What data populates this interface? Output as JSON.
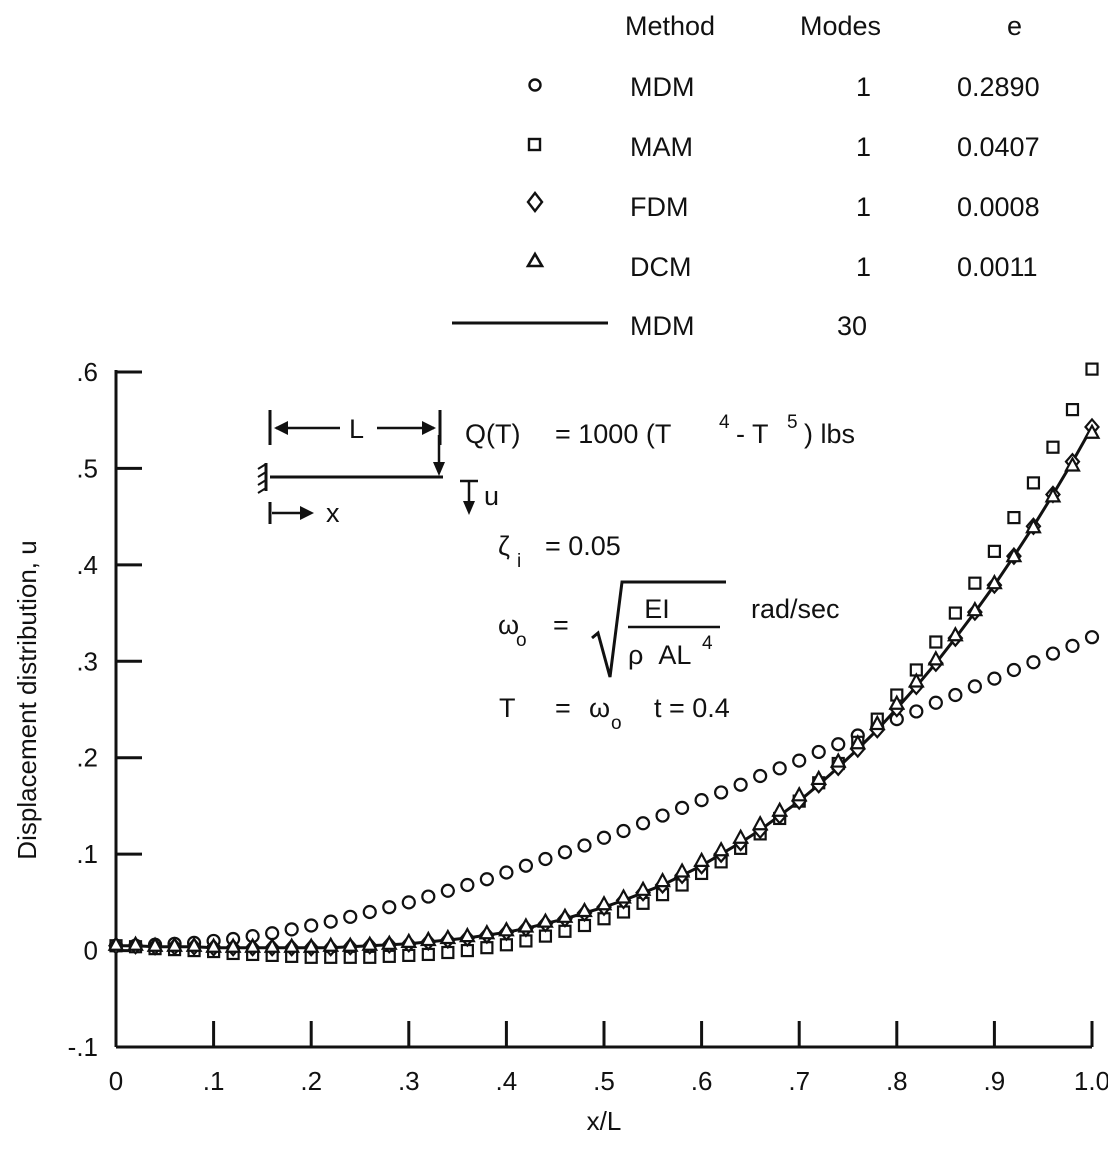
{
  "chart_data": {
    "type": "scatter",
    "xlabel": "x/L",
    "ylabel": "Displacement distribution, u",
    "xlim": [
      0,
      1.0
    ],
    "ylim": [
      -0.1,
      0.6
    ],
    "x_ticks": [
      "0",
      ".1",
      ".2",
      ".3",
      ".4",
      ".5",
      ".6",
      ".7",
      ".8",
      ".9",
      "1.0"
    ],
    "y_ticks": [
      "-.1",
      "0",
      ".1",
      ".2",
      ".3",
      ".4",
      ".5",
      ".6"
    ],
    "legend": {
      "placement": "top-right",
      "headers": {
        "method": "Method",
        "modes": "Modes",
        "e": "e"
      },
      "rows": [
        {
          "marker": "circle",
          "method": "MDM",
          "modes": "1",
          "e": "0.2890"
        },
        {
          "marker": "square",
          "method": "MAM",
          "modes": "1",
          "e": "0.0407"
        },
        {
          "marker": "diamond",
          "method": "FDM",
          "modes": "1",
          "e": "0.0008"
        },
        {
          "marker": "triangle",
          "method": "DCM",
          "modes": "1",
          "e": "0.0011"
        },
        {
          "marker": "line",
          "method": "MDM",
          "modes": "30",
          "e": ""
        }
      ]
    },
    "series": [
      {
        "name": "MDM",
        "modes": "1",
        "marker": "circle",
        "x": [
          0.0,
          0.02,
          0.04,
          0.06,
          0.08,
          0.1,
          0.12,
          0.14,
          0.16,
          0.18,
          0.2,
          0.22,
          0.24,
          0.26,
          0.28,
          0.3,
          0.32,
          0.34,
          0.36,
          0.38,
          0.4,
          0.42,
          0.44,
          0.46,
          0.48,
          0.5,
          0.52,
          0.54,
          0.56,
          0.58,
          0.6,
          0.62,
          0.64,
          0.66,
          0.68,
          0.7,
          0.72,
          0.74,
          0.76,
          0.78,
          0.8,
          0.82,
          0.84,
          0.86,
          0.88,
          0.9,
          0.92,
          0.94,
          0.96,
          0.98,
          1.0
        ],
        "y": [
          0.005,
          0.005,
          0.006,
          0.007,
          0.008,
          0.01,
          0.012,
          0.015,
          0.018,
          0.022,
          0.026,
          0.03,
          0.035,
          0.04,
          0.045,
          0.05,
          0.056,
          0.062,
          0.068,
          0.074,
          0.081,
          0.088,
          0.095,
          0.102,
          0.109,
          0.117,
          0.124,
          0.132,
          0.14,
          0.148,
          0.156,
          0.164,
          0.172,
          0.181,
          0.189,
          0.197,
          0.206,
          0.214,
          0.223,
          0.231,
          0.24,
          0.248,
          0.257,
          0.265,
          0.274,
          0.282,
          0.291,
          0.299,
          0.308,
          0.316,
          0.325
        ]
      },
      {
        "name": "MAM",
        "modes": "1",
        "marker": "square",
        "x": [
          0.0,
          0.02,
          0.04,
          0.06,
          0.08,
          0.1,
          0.12,
          0.14,
          0.16,
          0.18,
          0.2,
          0.22,
          0.24,
          0.26,
          0.28,
          0.3,
          0.32,
          0.34,
          0.36,
          0.38,
          0.4,
          0.42,
          0.44,
          0.46,
          0.48,
          0.5,
          0.52,
          0.54,
          0.56,
          0.58,
          0.6,
          0.62,
          0.64,
          0.66,
          0.68,
          0.7,
          0.72,
          0.74,
          0.76,
          0.78,
          0.8,
          0.82,
          0.84,
          0.86,
          0.88,
          0.9,
          0.92,
          0.94,
          0.96,
          0.98,
          1.0
        ],
        "y": [
          0.005,
          0.004,
          0.002,
          0.001,
          0.0,
          -0.001,
          -0.003,
          -0.004,
          -0.005,
          -0.006,
          -0.007,
          -0.007,
          -0.007,
          -0.007,
          -0.006,
          -0.005,
          -0.004,
          -0.002,
          0.0,
          0.003,
          0.006,
          0.01,
          0.015,
          0.02,
          0.026,
          0.033,
          0.04,
          0.049,
          0.058,
          0.068,
          0.08,
          0.092,
          0.106,
          0.121,
          0.137,
          0.155,
          0.174,
          0.194,
          0.216,
          0.24,
          0.265,
          0.291,
          0.32,
          0.35,
          0.381,
          0.414,
          0.449,
          0.485,
          0.522,
          0.561,
          0.603
        ]
      },
      {
        "name": "FDM",
        "modes": "1",
        "marker": "diamond",
        "x": [
          0.0,
          0.02,
          0.04,
          0.06,
          0.08,
          0.1,
          0.12,
          0.14,
          0.16,
          0.18,
          0.2,
          0.22,
          0.24,
          0.26,
          0.28,
          0.3,
          0.32,
          0.34,
          0.36,
          0.38,
          0.4,
          0.42,
          0.44,
          0.46,
          0.48,
          0.5,
          0.52,
          0.54,
          0.56,
          0.58,
          0.6,
          0.62,
          0.64,
          0.66,
          0.68,
          0.7,
          0.72,
          0.74,
          0.76,
          0.78,
          0.8,
          0.82,
          0.84,
          0.86,
          0.88,
          0.9,
          0.92,
          0.94,
          0.96,
          0.98,
          1.0
        ],
        "y": [
          0.005,
          0.005,
          0.004,
          0.004,
          0.004,
          0.003,
          0.003,
          0.003,
          0.003,
          0.003,
          0.003,
          0.003,
          0.004,
          0.005,
          0.006,
          0.007,
          0.009,
          0.011,
          0.013,
          0.016,
          0.019,
          0.023,
          0.028,
          0.033,
          0.039,
          0.045,
          0.052,
          0.06,
          0.068,
          0.078,
          0.088,
          0.1,
          0.112,
          0.125,
          0.14,
          0.155,
          0.172,
          0.19,
          0.209,
          0.229,
          0.251,
          0.274,
          0.298,
          0.324,
          0.351,
          0.379,
          0.409,
          0.44,
          0.473,
          0.507,
          0.543
        ]
      },
      {
        "name": "DCM",
        "modes": "1",
        "marker": "triangle",
        "x": [
          0.0,
          0.02,
          0.04,
          0.06,
          0.08,
          0.1,
          0.12,
          0.14,
          0.16,
          0.18,
          0.2,
          0.22,
          0.24,
          0.26,
          0.28,
          0.3,
          0.32,
          0.34,
          0.36,
          0.38,
          0.4,
          0.42,
          0.44,
          0.46,
          0.48,
          0.5,
          0.52,
          0.54,
          0.56,
          0.58,
          0.6,
          0.62,
          0.64,
          0.66,
          0.68,
          0.7,
          0.72,
          0.74,
          0.76,
          0.78,
          0.8,
          0.82,
          0.84,
          0.86,
          0.88,
          0.9,
          0.92,
          0.94,
          0.96,
          0.98,
          1.0
        ],
        "y": [
          0.006,
          0.006,
          0.005,
          0.005,
          0.005,
          0.004,
          0.004,
          0.004,
          0.004,
          0.004,
          0.004,
          0.005,
          0.005,
          0.006,
          0.007,
          0.009,
          0.011,
          0.013,
          0.015,
          0.018,
          0.021,
          0.025,
          0.03,
          0.035,
          0.041,
          0.048,
          0.055,
          0.063,
          0.072,
          0.082,
          0.093,
          0.104,
          0.117,
          0.131,
          0.145,
          0.161,
          0.178,
          0.196,
          0.215,
          0.235,
          0.256,
          0.279,
          0.302,
          0.327,
          0.353,
          0.381,
          0.409,
          0.439,
          0.471,
          0.503,
          0.537
        ]
      },
      {
        "name": "MDM",
        "modes": "30",
        "marker": "line",
        "x": [
          0.0,
          0.02,
          0.04,
          0.06,
          0.08,
          0.1,
          0.12,
          0.14,
          0.16,
          0.18,
          0.2,
          0.22,
          0.24,
          0.26,
          0.28,
          0.3,
          0.32,
          0.34,
          0.36,
          0.38,
          0.4,
          0.42,
          0.44,
          0.46,
          0.48,
          0.5,
          0.52,
          0.54,
          0.56,
          0.58,
          0.6,
          0.62,
          0.64,
          0.66,
          0.68,
          0.7,
          0.72,
          0.74,
          0.76,
          0.78,
          0.8,
          0.82,
          0.84,
          0.86,
          0.88,
          0.9,
          0.92,
          0.94,
          0.96,
          0.98,
          1.0
        ],
        "y": [
          0.005,
          0.005,
          0.004,
          0.004,
          0.004,
          0.003,
          0.003,
          0.003,
          0.003,
          0.003,
          0.003,
          0.003,
          0.004,
          0.005,
          0.006,
          0.007,
          0.009,
          0.011,
          0.013,
          0.016,
          0.019,
          0.023,
          0.028,
          0.033,
          0.039,
          0.045,
          0.052,
          0.06,
          0.068,
          0.078,
          0.088,
          0.1,
          0.112,
          0.125,
          0.14,
          0.155,
          0.172,
          0.19,
          0.209,
          0.229,
          0.251,
          0.274,
          0.298,
          0.324,
          0.351,
          0.379,
          0.409,
          0.44,
          0.473,
          0.507,
          0.543
        ]
      }
    ],
    "annotations": {
      "beam_length_label": "L",
      "beam_x_label": "x",
      "beam_u_label": "u",
      "load_lhs": "Q(T)",
      "load_rhs": "= 1000 (T",
      "load_exp1": "4",
      "load_mid": "- T",
      "load_exp2": "5",
      "load_units": ") lbs",
      "zeta_symbol": "ζ",
      "zeta_sub": "i",
      "zeta_value": "= 0.05",
      "omega_symbol": "ω",
      "omega_sub": "o",
      "omega_eq": "=",
      "omega_num": "EI",
      "omega_den": "ρ  AL",
      "omega_den_exp": "4",
      "omega_units": "rad/sec",
      "t_symbol": "T",
      "t_eq": "=",
      "t_omega": "ω",
      "t_omega_sub": "o",
      "t_rest": "t = 0.4"
    }
  }
}
